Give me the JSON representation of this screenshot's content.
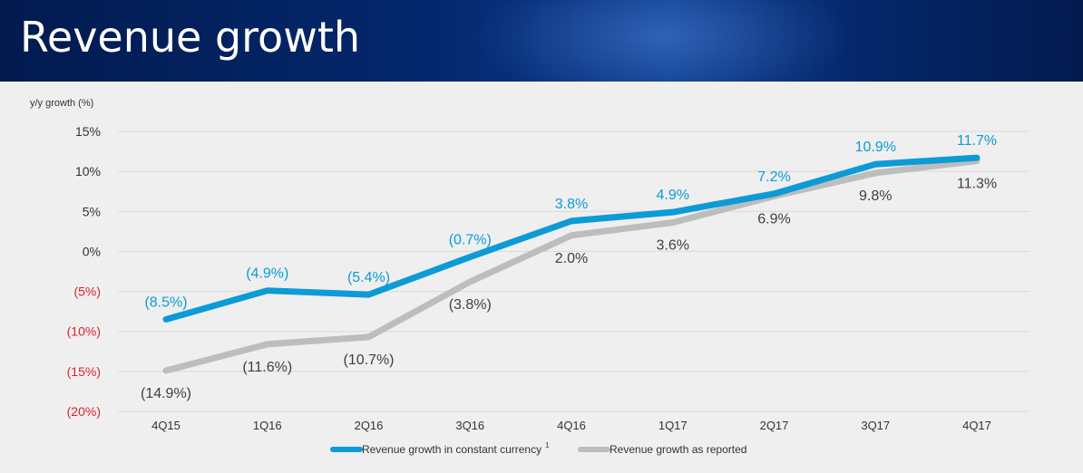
{
  "header": {
    "title": "Revenue growth"
  },
  "colors": {
    "constant": "#0c9bd6",
    "reported": "#bdbdbd",
    "negative": "#e0202a",
    "text": "#333333"
  },
  "chart_data": {
    "type": "line",
    "title": "Revenue growth",
    "ylabel": "y/y growth (%)",
    "xlabel": "",
    "categories": [
      "4Q15",
      "1Q16",
      "2Q16",
      "3Q16",
      "4Q16",
      "1Q17",
      "2Q17",
      "3Q17",
      "4Q17"
    ],
    "ylim": [
      -20,
      15
    ],
    "yticks": [
      {
        "value": 15,
        "label": "15%"
      },
      {
        "value": 10,
        "label": "10%"
      },
      {
        "value": 5,
        "label": "5%"
      },
      {
        "value": 0,
        "label": "0%"
      },
      {
        "value": -5,
        "label": "(5%)"
      },
      {
        "value": -10,
        "label": "(10%)"
      },
      {
        "value": -15,
        "label": "(15%)"
      },
      {
        "value": -20,
        "label": "(20%)"
      }
    ],
    "grid": true,
    "legend_position": "bottom",
    "series": [
      {
        "name": "Revenue growth in constant currency",
        "footnote": "1",
        "values": [
          -8.5,
          -4.9,
          -5.4,
          -0.7,
          3.8,
          4.9,
          7.2,
          10.9,
          11.7
        ],
        "labels": [
          "(8.5%)",
          "(4.9%)",
          "(5.4%)",
          "(0.7%)",
          "3.8%",
          "4.9%",
          "7.2%",
          "10.9%",
          "11.7%"
        ]
      },
      {
        "name": "Revenue growth as reported",
        "footnote": "",
        "values": [
          -14.9,
          -11.6,
          -10.7,
          -3.8,
          2.0,
          3.6,
          6.9,
          9.8,
          11.3
        ],
        "labels": [
          "(14.9%)",
          "(11.6%)",
          "(10.7%)",
          "(3.8%)",
          "2.0%",
          "3.6%",
          "6.9%",
          "9.8%",
          "11.3%"
        ]
      }
    ]
  }
}
